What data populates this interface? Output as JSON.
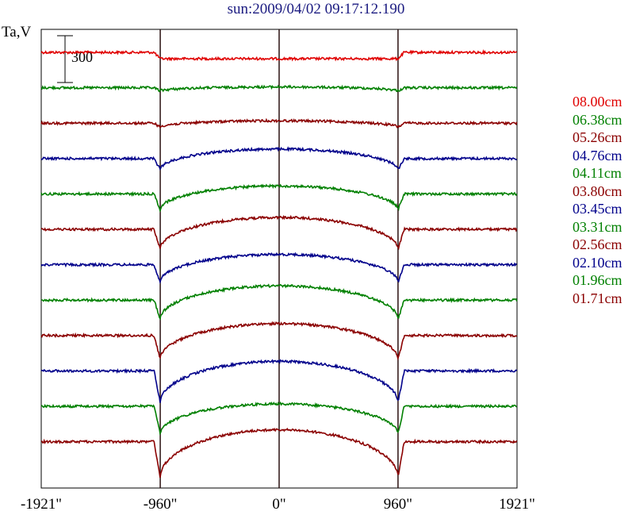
{
  "chart_data": {
    "type": "line",
    "title": "sun:2009/04/02 09:17:12.190",
    "ylabel": "Ta,V",
    "xlabel": "",
    "x_ticks": [
      "-1921\"",
      "-960\"",
      "0\"",
      "960\"",
      "1921\""
    ],
    "x_tick_values": [
      -1921,
      -960,
      0,
      960,
      1921
    ],
    "xlim": [
      -1921,
      1921
    ],
    "vertical_lines_at": [
      -960,
      0,
      960
    ],
    "scale_bar": {
      "label": "300",
      "value": 300
    },
    "grid": false,
    "legend_position": "right",
    "series": [
      {
        "name": "08.00cm",
        "color": "#e00000",
        "offset": 0,
        "limb": 8,
        "dome": 0
      },
      {
        "name": "06.38cm",
        "color": "#008000",
        "offset": 1,
        "limb": 4,
        "dome": 5
      },
      {
        "name": "05.26cm",
        "color": "#8b0000",
        "offset": 2,
        "limb": 5,
        "dome": 8
      },
      {
        "name": "04.76cm",
        "color": "#00008b",
        "offset": 3,
        "limb": 14,
        "dome": 26
      },
      {
        "name": "04.11cm",
        "color": "#008000",
        "offset": 4,
        "limb": 20,
        "dome": 30
      },
      {
        "name": "03.80cm",
        "color": "#8b0000",
        "offset": 5,
        "limb": 25,
        "dome": 40
      },
      {
        "name": "03.45cm",
        "color": "#00008b",
        "offset": 6,
        "limb": 22,
        "dome": 35
      },
      {
        "name": "03.31cm",
        "color": "#008000",
        "offset": 7,
        "limb": 24,
        "dome": 42
      },
      {
        "name": "02.56cm",
        "color": "#8b0000",
        "offset": 8,
        "limb": 30,
        "dome": 45
      },
      {
        "name": "02.10cm",
        "color": "#00008b",
        "offset": 9,
        "limb": 40,
        "dome": 52
      },
      {
        "name": "01.96cm",
        "color": "#008000",
        "offset": 10,
        "limb": 35,
        "dome": 38
      },
      {
        "name": "01.71cm",
        "color": "#8b0000",
        "offset": 11,
        "limb": 45,
        "dome": 60
      }
    ]
  }
}
